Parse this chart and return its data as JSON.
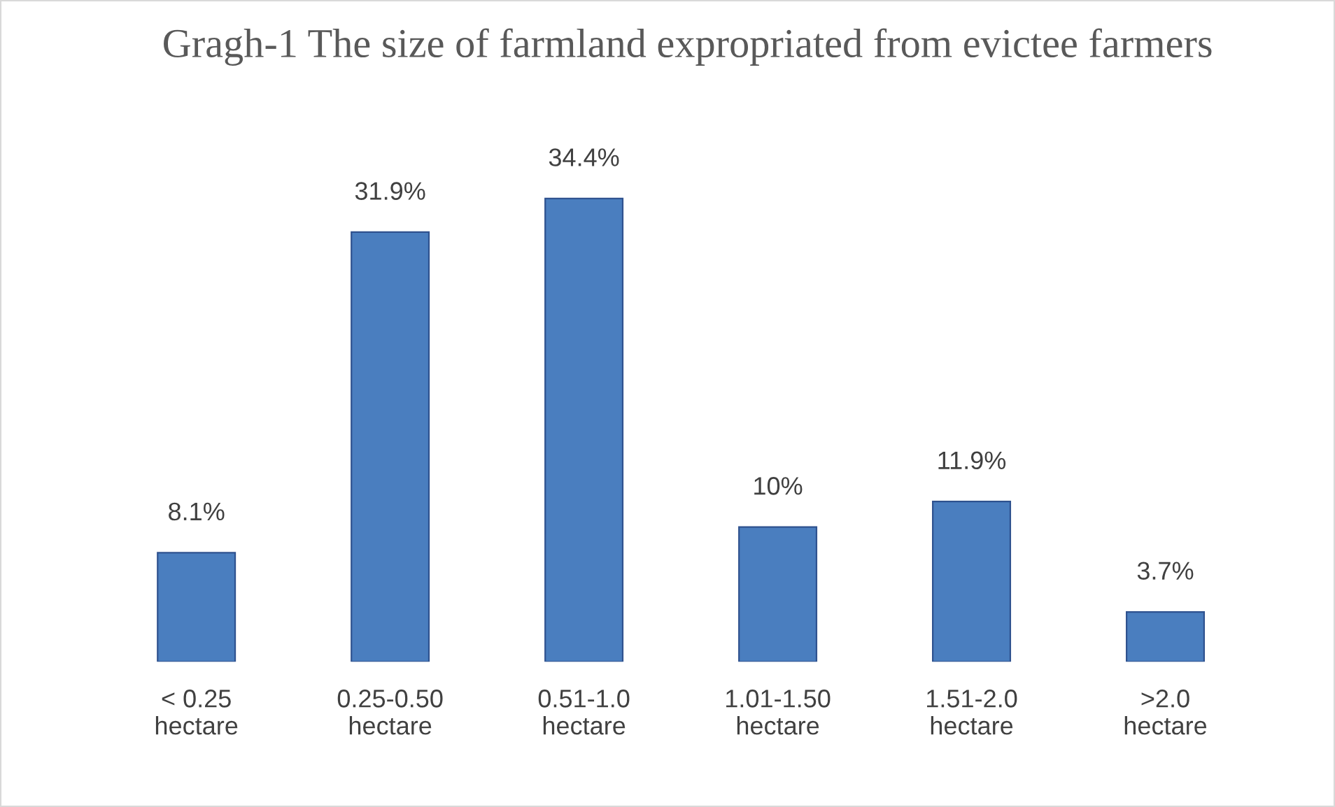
{
  "chart_data": {
    "type": "bar",
    "title": "Gragh-1 The size of farmland expropriated from evictee farmers",
    "categories": [
      "< 0.25\nhectare",
      "0.25-0.50\nhectare",
      "0.51-1.0\nhectare",
      "1.01-1.50\nhectare",
      "1.51-2.0\nhectare",
      ">2.0\nhectare"
    ],
    "values": [
      8.1,
      31.9,
      34.4,
      10,
      11.9,
      3.7
    ],
    "color": "#4a7ebf",
    "value_labels": [
      "8.1%",
      "31.9%",
      "34.4%",
      "10%",
      "11.9%",
      "3.7%"
    ],
    "grid": false,
    "legend": false
  }
}
